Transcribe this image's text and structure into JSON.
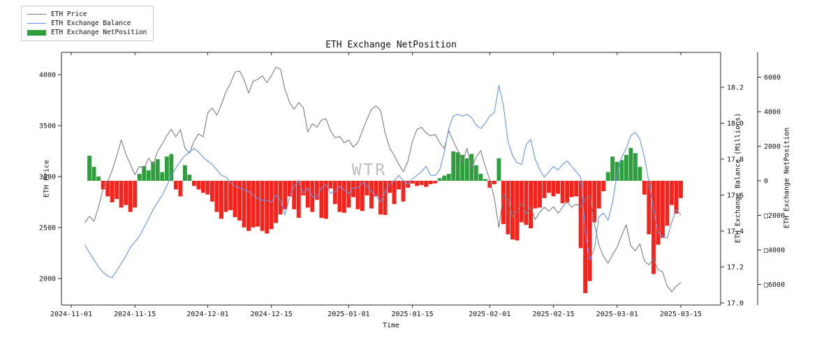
{
  "chart_data": {
    "type": "mixed-line-bar",
    "title": "ETH Exchange NetPosition",
    "watermark": "WTR",
    "xlabel": "Time",
    "start_date": "2024-11-01",
    "legend": [
      {
        "label": "ETH Price",
        "swatch": "line",
        "color": "#7d7d7d"
      },
      {
        "label": "ETH Exchange Balance",
        "swatch": "line",
        "color": "#6495ed"
      },
      {
        "label": "ETH Exchange NetPosition",
        "swatch": "rect",
        "color": "#2e9d3c"
      }
    ],
    "x_ticks": [
      {
        "day": 0,
        "label": "2024-11-01"
      },
      {
        "day": 14,
        "label": "2024-11-15"
      },
      {
        "day": 30,
        "label": "2024-12-01"
      },
      {
        "day": 44,
        "label": "2024-12-15"
      },
      {
        "day": 61,
        "label": "2025-01-01"
      },
      {
        "day": 75,
        "label": "2025-01-15"
      },
      {
        "day": 92,
        "label": "2025-02-01"
      },
      {
        "day": 106,
        "label": "2025-02-15"
      },
      {
        "day": 120,
        "label": "2025-03-01"
      },
      {
        "day": 134,
        "label": "2025-03-15"
      }
    ],
    "axes": {
      "price": {
        "label": "ETH Price",
        "side": "left",
        "ticks": [
          2000,
          2500,
          3000,
          3500,
          4000
        ],
        "range": [
          1740,
          4230
        ]
      },
      "balance": {
        "label": "ETH Exchange Balance (Millions)",
        "side": "right",
        "ticks": [
          {
            "v": 17.0,
            "label": "17.0"
          },
          {
            "v": 17.2,
            "label": "17.2"
          },
          {
            "v": 17.4,
            "label": "17.4"
          },
          {
            "v": 17.6,
            "label": "17.6"
          },
          {
            "v": 17.8,
            "label": "17.8"
          },
          {
            "v": 18.0,
            "label": "18.0"
          },
          {
            "v": 18.2,
            "label": "18.2"
          }
        ],
        "range": [
          16.95,
          18.3
        ]
      },
      "netpos": {
        "label": "ETH Exchange NetPosition",
        "side": "right-offset",
        "ticks": [
          {
            "v": 6000,
            "label": "6000"
          },
          {
            "v": 4000,
            "label": "4000"
          },
          {
            "v": 2000,
            "label": "2000"
          },
          {
            "v": 0,
            "label": "0"
          },
          {
            "v": -2000,
            "label": "□2000"
          },
          {
            "v": -4000,
            "label": "□4000"
          },
          {
            "v": -6000,
            "label": "□6000"
          }
        ],
        "range": [
          -7400,
          7400
        ]
      }
    },
    "series": [
      {
        "name": "ETH Price",
        "type": "line",
        "axis": "price",
        "color": "#7d7d7d",
        "start_day": 3,
        "values": [
          2550,
          2610,
          2560,
          2700,
          2880,
          2950,
          3060,
          3200,
          3360,
          3220,
          3120,
          3020,
          3100,
          3080,
          3180,
          3120,
          3250,
          3320,
          3400,
          3465,
          3390,
          3460,
          3280,
          3230,
          3350,
          3420,
          3390,
          3624,
          3672,
          3603,
          3707,
          3831,
          3914,
          4025,
          4038,
          3948,
          3820,
          3935,
          3955,
          3990,
          3921,
          3990,
          4073,
          4052,
          3852,
          3727,
          3660,
          3727,
          3679,
          3436,
          3519,
          3484,
          3554,
          3568,
          3450,
          3380,
          3394,
          3332,
          3359,
          3290,
          3332,
          3450,
          3560,
          3660,
          3692,
          3650,
          3430,
          3280,
          3207,
          3120,
          3048,
          3150,
          3345,
          3463,
          3484,
          3428,
          3401,
          3415,
          3332,
          3276,
          3449,
          3345,
          3255,
          3138,
          3276,
          3090,
          3186,
          3255,
          3103,
          2965,
          2790,
          2500,
          2826,
          2770,
          2604,
          2666,
          2742,
          2632,
          2700,
          2580,
          2650,
          2700,
          2660,
          2705,
          2640,
          2700,
          2752,
          2700,
          2730,
          2700,
          2780,
          2811,
          2535,
          2327,
          2217,
          2150,
          2238,
          2307,
          2424,
          2528,
          2320,
          2270,
          2340,
          2170,
          2135,
          2190,
          2085,
          2065,
          1925,
          1870,
          1925,
          1960
        ]
      },
      {
        "name": "ETH Exchange Balance",
        "type": "line",
        "axis": "balance",
        "color": "#6495ed",
        "start_day": 3,
        "values": [
          17.32,
          17.28,
          17.24,
          17.2,
          17.17,
          17.15,
          17.14,
          17.18,
          17.22,
          17.26,
          17.31,
          17.34,
          17.37,
          17.42,
          17.47,
          17.52,
          17.56,
          17.6,
          17.65,
          17.71,
          17.75,
          17.79,
          17.82,
          17.84,
          17.86,
          17.84,
          17.81,
          17.79,
          17.77,
          17.74,
          17.71,
          17.7,
          17.67,
          17.65,
          17.64,
          17.63,
          17.62,
          17.6,
          17.58,
          17.57,
          17.57,
          17.56,
          17.6,
          17.57,
          17.49,
          17.59,
          17.65,
          17.68,
          17.61,
          17.64,
          17.59,
          17.59,
          17.64,
          17.66,
          17.61,
          17.62,
          17.65,
          17.63,
          17.61,
          17.64,
          17.64,
          17.67,
          17.65,
          17.62,
          17.6,
          17.56,
          17.62,
          17.66,
          17.68,
          17.71,
          17.68,
          17.66,
          17.69,
          17.71,
          17.73,
          17.76,
          17.71,
          17.71,
          17.74,
          17.84,
          17.97,
          18.04,
          18.05,
          18.04,
          18.05,
          18.03,
          17.99,
          17.97,
          18.0,
          18.04,
          18.06,
          18.21,
          18.1,
          17.9,
          17.82,
          17.78,
          17.77,
          17.88,
          17.91,
          17.8,
          17.74,
          17.7,
          17.73,
          17.76,
          17.74,
          17.77,
          17.79,
          17.76,
          17.73,
          17.7,
          17.4,
          17.24,
          17.3,
          17.48,
          17.5,
          17.46,
          17.56,
          17.72,
          17.81,
          17.86,
          17.93,
          17.95,
          17.91,
          17.81,
          17.67,
          17.52,
          17.39,
          17.37,
          17.36,
          17.45,
          17.52,
          17.49
        ]
      },
      {
        "name": "ETH Exchange NetPosition",
        "type": "bar",
        "axis": "netpos",
        "color_pos": "#2e9d3c",
        "color_neg": "#f5231b",
        "start_day": 3,
        "values": [
          0,
          1450,
          800,
          250,
          -500,
          -900,
          -1250,
          -1050,
          -1550,
          -1400,
          -1800,
          -1550,
          400,
          850,
          600,
          1100,
          1250,
          500,
          1400,
          1550,
          -500,
          -900,
          900,
          350,
          -300,
          -500,
          -700,
          -800,
          -1200,
          -1800,
          -2200,
          -1800,
          -1700,
          -2100,
          -2300,
          -2700,
          -2900,
          -2700,
          -2650,
          -2900,
          -3050,
          -2800,
          -2450,
          -1950,
          -1650,
          -900,
          -1650,
          -2150,
          -850,
          -1550,
          -1800,
          -1100,
          -2150,
          -2200,
          -450,
          -1350,
          -1800,
          -1850,
          -1550,
          -950,
          -1650,
          -1750,
          -850,
          -1600,
          -900,
          -1950,
          -1980,
          -700,
          -1350,
          -500,
          -1200,
          -400,
          -160,
          -300,
          -250,
          -350,
          -200,
          -150,
          150,
          300,
          400,
          1700,
          1650,
          1500,
          1300,
          1550,
          900,
          400,
          100,
          -400,
          -200,
          1300,
          -2500,
          -3100,
          -3400,
          -3450,
          -2400,
          -2550,
          -2750,
          -1600,
          -1550,
          -1000,
          -700,
          -900,
          -750,
          -1300,
          -1250,
          -950,
          -900,
          -3900,
          -6500,
          -5800,
          -2400,
          -1600,
          -600,
          500,
          1400,
          1100,
          1200,
          1500,
          1900,
          1600,
          800,
          -800,
          -3100,
          -5400,
          -3700,
          -3300,
          -2600,
          -1400,
          -1900,
          -1000
        ]
      }
    ]
  }
}
